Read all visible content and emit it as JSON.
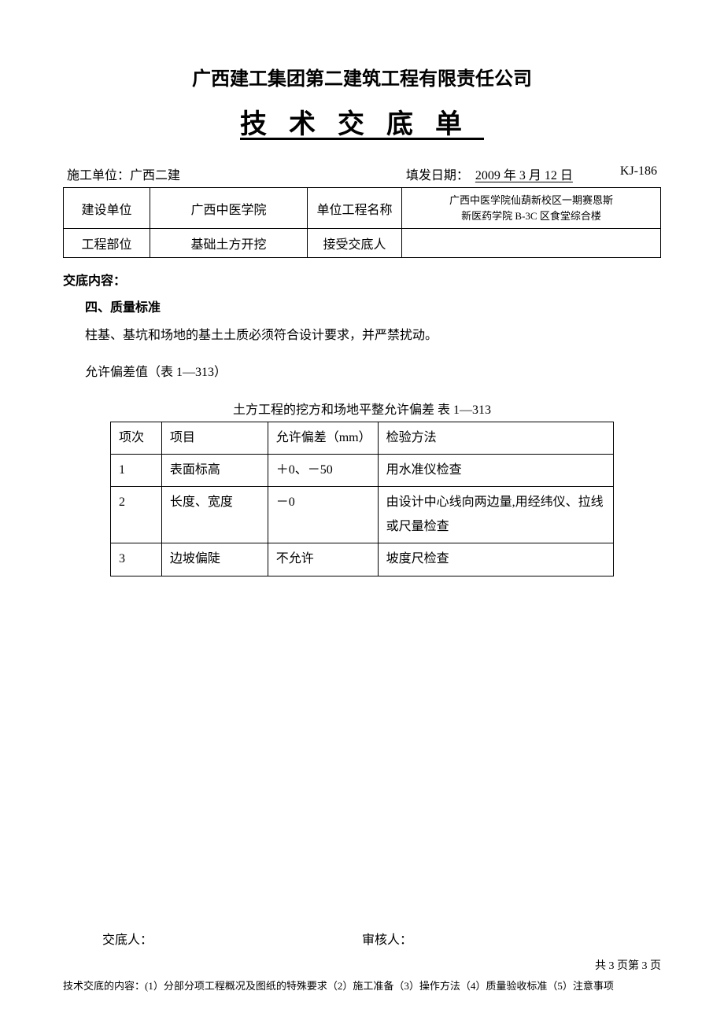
{
  "company": "广西建工集团第二建筑工程有限责任公司",
  "doc_title": "技术交底单",
  "header": {
    "unit_label": "施工单位：",
    "unit_value": "广西二建",
    "date_label": "填发日期：",
    "date_value": "2009 年 3 月 12 日",
    "doc_no": "KJ-186"
  },
  "info": {
    "row1": {
      "l1": "建设单位",
      "v1": "广西中医学院",
      "l2": "单位工程名称",
      "v2_line1": "广西中医学院仙葫新校区一期赛恩斯",
      "v2_line2": "新医药学院 B-3C 区食堂综合楼"
    },
    "row2": {
      "l1": "工程部位",
      "v1": "基础土方开挖",
      "l2": "接受交底人",
      "v2": ""
    }
  },
  "content": {
    "header": "交底内容：",
    "section": "四、质量标准",
    "para1": "柱基、基坑和场地的基土土质必须符合设计要求，并严禁扰动。",
    "para2": "允许偏差值（表 1—313）",
    "table_caption": "土方工程的挖方和场地平整允许偏差 表 1—313",
    "table": {
      "headers": [
        "项次",
        "项目",
        "允许偏差（mm）",
        "检验方法"
      ],
      "rows": [
        [
          "1",
          "表面标高",
          "＋0、－50",
          "用水准仪检查"
        ],
        [
          "2",
          "长度、宽度",
          "－0",
          "由设计中心线向两边量,用经纬仪、拉线或尺量检查"
        ],
        [
          "3",
          "边坡偏陡",
          "不允许",
          "坡度尺检查"
        ]
      ]
    }
  },
  "footer": {
    "presenter": "交底人：",
    "reviewer": "审核人：",
    "page": "共 3 页第 3 页",
    "note": "技术交底的内容：(1）分部分项工程概况及图纸的特殊要求（2）施工准备（3）操作方法（4）质量验收标准（5）注意事项"
  }
}
